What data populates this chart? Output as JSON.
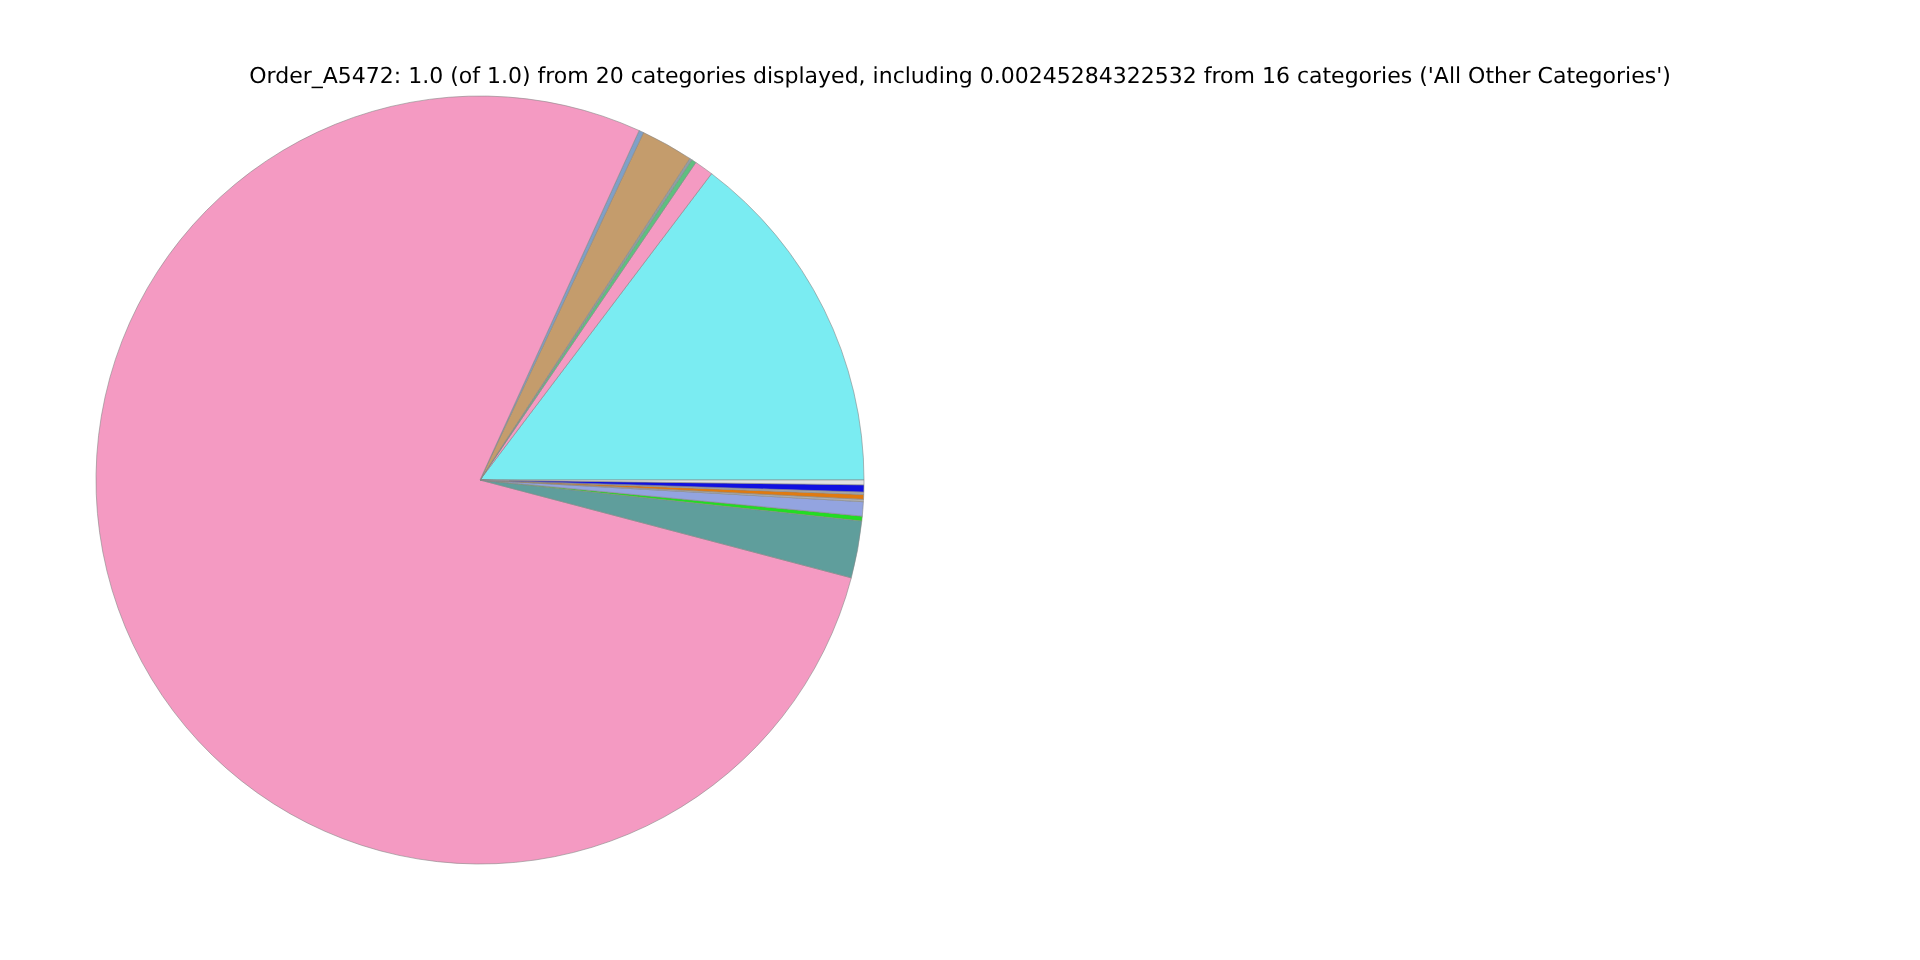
{
  "chart_data": {
    "type": "pie",
    "title": "Order_A5472: 1.0 (of 1.0) from 20 categories displayed, including 0.00245284322532 from 16 categories ('All Other Categories')",
    "categories": [
      null,
      null,
      null,
      null,
      null,
      null,
      null,
      null,
      null,
      null,
      null,
      null,
      null,
      null,
      null
    ],
    "values": [
      14.7,
      0.8,
      0.2,
      0.1,
      2.2,
      0.2,
      77.7,
      2.4,
      0.2,
      0.6,
      0.1,
      0.2,
      0.1,
      0.3,
      0.2
    ],
    "colors": [
      "#7aecf2",
      "#f49ac2",
      "#5fbf7f",
      "#8fa0a8",
      "#c49c6c",
      "#7fa0c8",
      "#f49ac2",
      "#5f9e9c",
      "#22dd22",
      "#93a4e0",
      "#b0b0b0",
      "#e07a10",
      "#a8a8a8",
      "#1010e0",
      "#e0e0e0"
    ],
    "legend": false
  }
}
